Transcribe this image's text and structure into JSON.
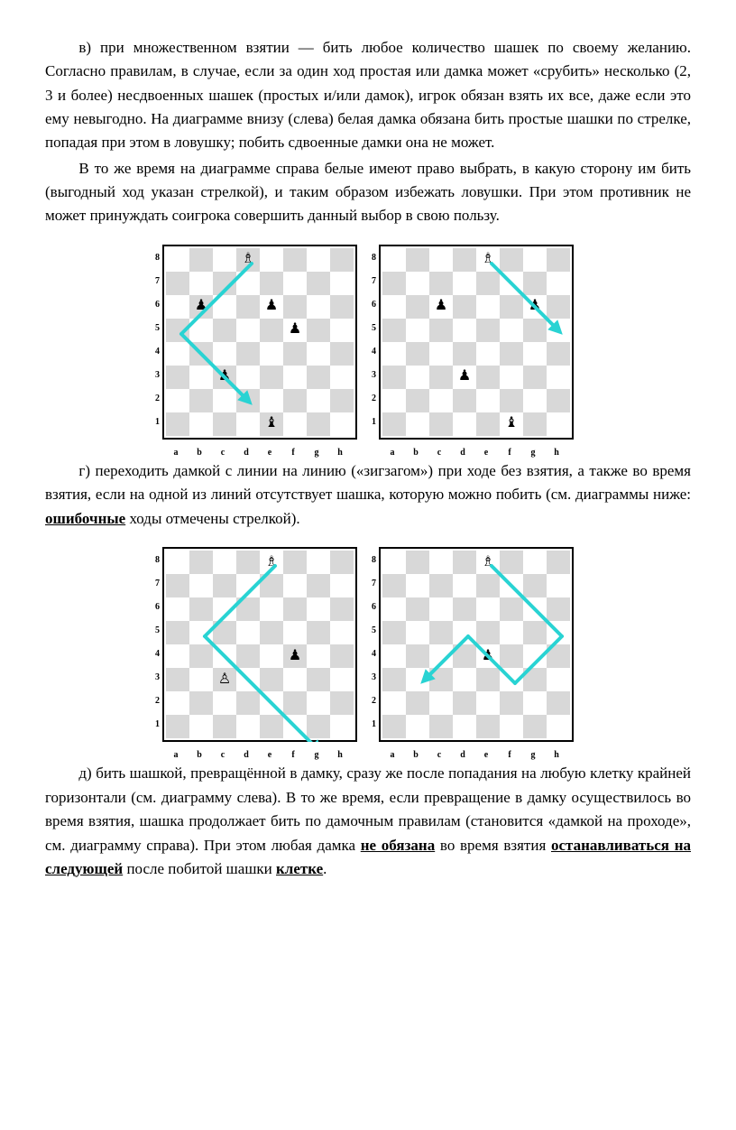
{
  "text": {
    "p1": "в) при множественном взятии — бить любое количество шашек по своему желанию. Согласно правилам, в случае, если за один ход простая или дамка может «срубить» несколько (2, 3 и более) несдвоенных шашек (простых и/или дамок), игрок обязан взять их все, даже если это ему невыгодно. На диаграмме внизу (слева) белая дамка обязана бить простые шашки по стрелке, попадая при этом в ловушку; побить сдвоенные дамки она не может.",
    "p2": "В то же время на диаграмме справа белые имеют право выбрать, в какую сторону им бить (выгодный ход указан стрелкой), и таким образом избежать ловушки. При этом противник не может принуждать соигрока совершить данный выбор в свою пользу.",
    "p3_a": "г) переходить дамкой с линии на линию («зигзагом») при ходе без взятия, а также во время взятия, если на одной из линий отсутствует шашка, которую можно побить (см. диаграммы ниже: ",
    "p3_b": "ошибочные",
    "p3_c": " ходы отмечены стрелкой).",
    "p4_a": "д) бить шашкой, превращённой в дамку, сразу же после попадания на любую клетку крайней горизонтали (см. диаграмму слева). В то же время, если превращение в дамку осуществилось во время взятия, шашка продолжает бить по дамочным правилам (становится «дамкой на проходе», см. диаграмму справа). При этом любая дамка ",
    "p4_b": "не обязана",
    "p4_c": " во время взятия ",
    "p4_d": "останавливаться на следующей",
    "p4_e": " после побитой шашки ",
    "p4_f": "клетке",
    "p4_g": "."
  },
  "board": {
    "cell": 26,
    "light": "#ffffff",
    "dark": "#d8d8d8",
    "arrow_stroke": "#29d3d3",
    "arrow_fill": "#29d3d3",
    "arrow_width": 4,
    "ranks": [
      "8",
      "7",
      "6",
      "5",
      "4",
      "3",
      "2",
      "1"
    ],
    "files": [
      "a",
      "b",
      "c",
      "d",
      "e",
      "f",
      "g",
      "h"
    ]
  },
  "diagrams1": {
    "left": {
      "pieces": [
        {
          "sq": "d8",
          "glyph": "♗"
        },
        {
          "sq": "b6",
          "glyph": "♟"
        },
        {
          "sq": "e6",
          "glyph": "♟"
        },
        {
          "sq": "f5",
          "glyph": "♟"
        },
        {
          "sq": "c3",
          "glyph": "♟"
        },
        {
          "sq": "e1",
          "glyph": "♝"
        }
      ],
      "arrows": [
        {
          "from": "d8",
          "to": "a5"
        },
        {
          "from": "a5",
          "to": "d2",
          "head": true
        }
      ]
    },
    "right": {
      "pieces": [
        {
          "sq": "e8",
          "glyph": "♗"
        },
        {
          "sq": "c6",
          "glyph": "♟"
        },
        {
          "sq": "g6",
          "glyph": "♟"
        },
        {
          "sq": "d3",
          "glyph": "♟"
        },
        {
          "sq": "f1",
          "glyph": "♝"
        }
      ],
      "arrows": [
        {
          "from": "e8",
          "to": "h5",
          "head": true
        }
      ]
    }
  },
  "diagrams2": {
    "left": {
      "pieces": [
        {
          "sq": "e8",
          "glyph": "♗"
        },
        {
          "sq": "f4",
          "glyph": "♟"
        },
        {
          "sq": "c3",
          "glyph": "♙"
        }
      ],
      "arrows": [
        {
          "from": "e8",
          "to": "b5"
        },
        {
          "from": "b5",
          "to": "g0",
          "head": true
        }
      ]
    },
    "right": {
      "pieces": [
        {
          "sq": "e8",
          "glyph": "♗"
        },
        {
          "sq": "e4",
          "glyph": "♟"
        }
      ],
      "arrows": [
        {
          "from": "e8",
          "to": "h5"
        },
        {
          "from": "h5",
          "to": "f3"
        },
        {
          "from": "f3",
          "to": "d5"
        },
        {
          "from": "d5",
          "to": "b3",
          "head": true
        }
      ]
    }
  }
}
